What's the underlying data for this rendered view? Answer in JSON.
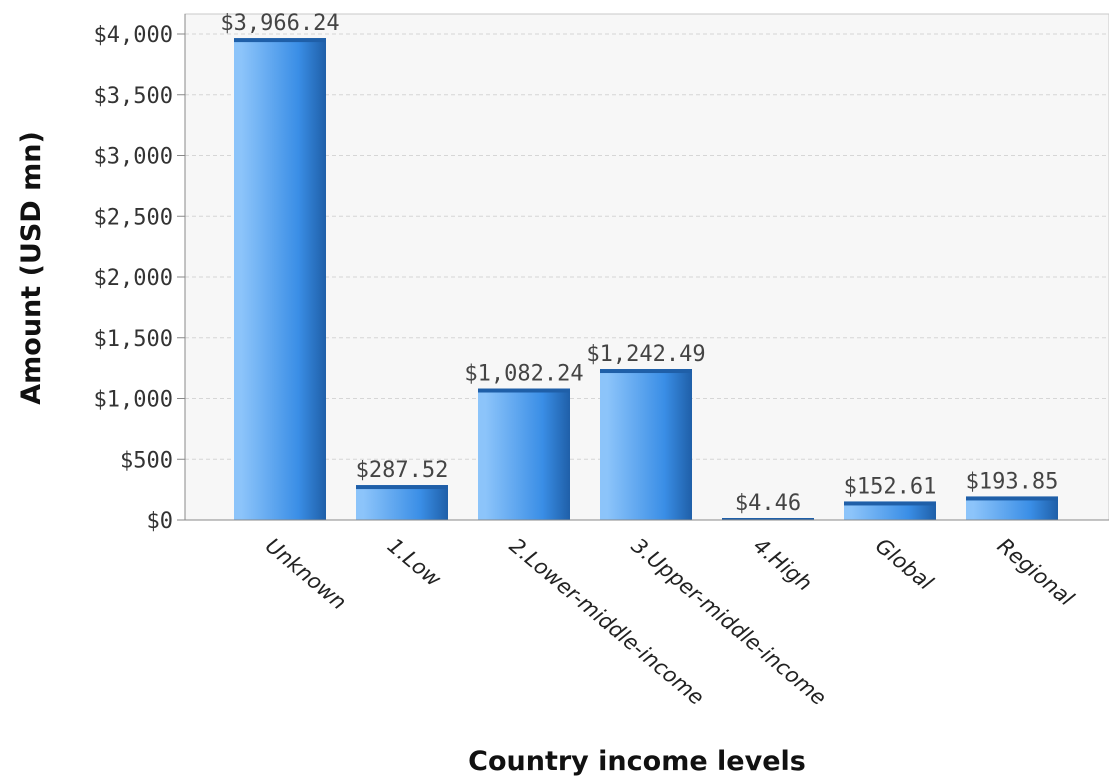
{
  "chart_data": {
    "type": "bar",
    "title": "",
    "xlabel": "Country income levels",
    "ylabel": "Amount (USD mn)",
    "categories": [
      "Unknown",
      "1.Low",
      "2.Lower-middle-income",
      "3.Upper-middle-income",
      "4.High",
      "Global",
      "Regional"
    ],
    "values": [
      3966.24,
      287.52,
      1082.24,
      1242.49,
      4.46,
      152.61,
      193.85
    ],
    "data_labels": [
      "$3,966.24",
      "$287.52",
      "$1,082.24",
      "$1,242.49",
      "$4.46",
      "$152.61",
      "$193.85"
    ],
    "ylim": [
      0,
      4000
    ],
    "yticks": [
      0,
      500,
      1000,
      1500,
      2000,
      2500,
      3000,
      3500,
      4000
    ],
    "ytick_labels": [
      "$0",
      "$500",
      "$1,000",
      "$1,500",
      "$2,000",
      "$2,500",
      "$3,000",
      "$3,500",
      "$4,000"
    ],
    "grid": true,
    "legend": "none",
    "bar_color": "#3a8ee6",
    "bar_color_dark": "#1f5fa8",
    "bar_color_light": "#8cc4fa",
    "plot_background": "#f7f7f7"
  }
}
